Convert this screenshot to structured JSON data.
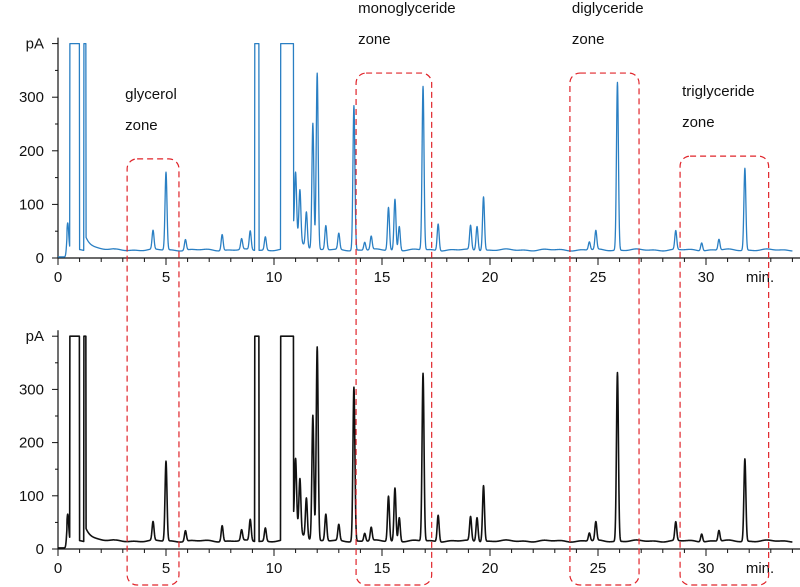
{
  "chart_data": [
    {
      "type": "line",
      "color": "#2a7fc3",
      "ylabel": "pA",
      "xunit": "min.",
      "xlim": [
        0,
        34
      ],
      "ylim": [
        0,
        400
      ],
      "x_ticks": [
        0,
        5,
        10,
        15,
        20,
        25,
        30
      ],
      "y_ticks": [
        0,
        100,
        200,
        300
      ],
      "grid": false,
      "off_scale_above": 400,
      "baseline": 15,
      "saturated_intervals": [
        [
          0.55,
          1.0
        ],
        [
          1.2,
          1.3
        ],
        [
          9.1,
          9.3
        ],
        [
          10.3,
          10.9
        ]
      ],
      "peaks": [
        {
          "x": 0.45,
          "y": 65
        },
        {
          "x": 4.4,
          "y": 50
        },
        {
          "x": 5.0,
          "y": 160
        },
        {
          "x": 5.9,
          "y": 35
        },
        {
          "x": 7.6,
          "y": 45
        },
        {
          "x": 8.5,
          "y": 35
        },
        {
          "x": 8.9,
          "y": 50
        },
        {
          "x": 9.6,
          "y": 40
        },
        {
          "x": 11.0,
          "y": 130
        },
        {
          "x": 11.2,
          "y": 110
        },
        {
          "x": 11.5,
          "y": 80
        },
        {
          "x": 11.8,
          "y": 250
        },
        {
          "x": 12.0,
          "y": 345
        },
        {
          "x": 12.4,
          "y": 60
        },
        {
          "x": 13.0,
          "y": 45
        },
        {
          "x": 13.7,
          "y": 285
        },
        {
          "x": 14.2,
          "y": 30
        },
        {
          "x": 14.5,
          "y": 40
        },
        {
          "x": 15.3,
          "y": 95
        },
        {
          "x": 15.6,
          "y": 110
        },
        {
          "x": 15.8,
          "y": 60
        },
        {
          "x": 16.9,
          "y": 320
        },
        {
          "x": 17.6,
          "y": 65
        },
        {
          "x": 19.1,
          "y": 60
        },
        {
          "x": 19.4,
          "y": 60
        },
        {
          "x": 19.7,
          "y": 115
        },
        {
          "x": 24.6,
          "y": 30
        },
        {
          "x": 24.9,
          "y": 50
        },
        {
          "x": 25.9,
          "y": 328
        },
        {
          "x": 28.6,
          "y": 50
        },
        {
          "x": 29.8,
          "y": 30
        },
        {
          "x": 30.6,
          "y": 35
        },
        {
          "x": 31.8,
          "y": 168
        }
      ]
    },
    {
      "type": "line",
      "color": "#111111",
      "ylabel": "pA",
      "xunit": "min.",
      "xlim": [
        0,
        34
      ],
      "ylim": [
        0,
        400
      ],
      "x_ticks": [
        0,
        5,
        10,
        15,
        20,
        25,
        30
      ],
      "y_ticks": [
        0,
        100,
        200,
        300
      ],
      "grid": false,
      "off_scale_above": 400,
      "baseline": 15,
      "saturated_intervals": [
        [
          0.55,
          1.0
        ],
        [
          1.2,
          1.3
        ],
        [
          9.1,
          9.3
        ],
        [
          10.3,
          10.9
        ]
      ],
      "peaks": [
        {
          "x": 0.45,
          "y": 65
        },
        {
          "x": 4.4,
          "y": 50
        },
        {
          "x": 5.0,
          "y": 165
        },
        {
          "x": 5.9,
          "y": 35
        },
        {
          "x": 7.6,
          "y": 45
        },
        {
          "x": 8.5,
          "y": 35
        },
        {
          "x": 8.9,
          "y": 55
        },
        {
          "x": 9.6,
          "y": 40
        },
        {
          "x": 11.0,
          "y": 140
        },
        {
          "x": 11.2,
          "y": 115
        },
        {
          "x": 11.5,
          "y": 90
        },
        {
          "x": 11.8,
          "y": 250
        },
        {
          "x": 12.0,
          "y": 380
        },
        {
          "x": 12.4,
          "y": 65
        },
        {
          "x": 13.0,
          "y": 45
        },
        {
          "x": 13.7,
          "y": 305
        },
        {
          "x": 14.2,
          "y": 30
        },
        {
          "x": 14.5,
          "y": 40
        },
        {
          "x": 15.3,
          "y": 100
        },
        {
          "x": 15.6,
          "y": 115
        },
        {
          "x": 15.8,
          "y": 60
        },
        {
          "x": 16.9,
          "y": 330
        },
        {
          "x": 17.6,
          "y": 65
        },
        {
          "x": 19.1,
          "y": 60
        },
        {
          "x": 19.4,
          "y": 60
        },
        {
          "x": 19.7,
          "y": 120
        },
        {
          "x": 24.6,
          "y": 30
        },
        {
          "x": 24.9,
          "y": 50
        },
        {
          "x": 25.9,
          "y": 332
        },
        {
          "x": 28.6,
          "y": 50
        },
        {
          "x": 29.8,
          "y": 30
        },
        {
          "x": 30.6,
          "y": 35
        },
        {
          "x": 31.8,
          "y": 170
        }
      ]
    }
  ],
  "zones": [
    {
      "label_lines": [
        "glycerol",
        "zone"
      ],
      "x_range": [
        3.2,
        5.6
      ],
      "top_y": 185
    },
    {
      "label_lines": [
        "monoglyceride",
        "zone"
      ],
      "x_range": [
        13.8,
        17.3
      ],
      "top_y": 345
    },
    {
      "label_lines": [
        "diglyceride",
        "zone"
      ],
      "x_range": [
        23.7,
        26.9
      ],
      "top_y": 345
    },
    {
      "label_lines": [
        "triglyceride",
        "zone"
      ],
      "x_range": [
        28.8,
        32.9
      ],
      "top_y": 190
    }
  ],
  "zone_color": "#e0242a"
}
